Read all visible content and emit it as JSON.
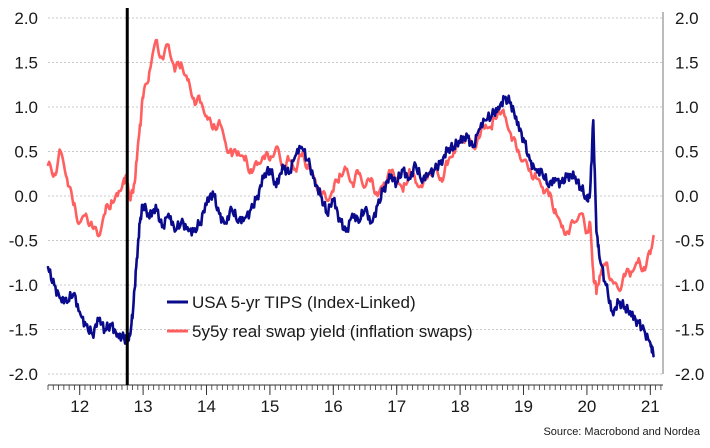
{
  "chart_data": {
    "type": "line",
    "x_tick_labels": [
      "12",
      "13",
      "14",
      "15",
      "16",
      "17",
      "18",
      "19",
      "20",
      "21"
    ],
    "y_tick_labels": [
      "2.0",
      "1.5",
      "1.0",
      "0.5",
      "0.0",
      "-0.5",
      "-1.0",
      "-1.5",
      "-2.0"
    ],
    "ylim": [
      -2.0,
      2.0
    ],
    "xlim": [
      2011.5,
      2021.2
    ],
    "grid": "horizontal",
    "legend_position": "bottom-left",
    "vertical_marker_x": 2012.75,
    "series": [
      {
        "name": "USA 5-yr TIPS (Index-Linked)",
        "color": "#0a0a8c",
        "x": [
          2011.5,
          2011.6,
          2011.7,
          2011.8,
          2011.9,
          2012.0,
          2012.1,
          2012.2,
          2012.3,
          2012.4,
          2012.5,
          2012.6,
          2012.7,
          2012.75,
          2012.8,
          2012.85,
          2012.9,
          2012.95,
          2013.0,
          2013.1,
          2013.2,
          2013.3,
          2013.4,
          2013.5,
          2013.6,
          2013.7,
          2013.8,
          2013.9,
          2014.0,
          2014.1,
          2014.2,
          2014.3,
          2014.4,
          2014.5,
          2014.6,
          2014.7,
          2014.8,
          2014.9,
          2015.0,
          2015.1,
          2015.2,
          2015.3,
          2015.4,
          2015.5,
          2015.6,
          2015.7,
          2015.8,
          2015.9,
          2016.0,
          2016.1,
          2016.2,
          2016.3,
          2016.4,
          2016.5,
          2016.6,
          2016.7,
          2016.8,
          2016.9,
          2017.0,
          2017.1,
          2017.2,
          2017.3,
          2017.4,
          2017.5,
          2017.6,
          2017.7,
          2017.8,
          2017.9,
          2018.0,
          2018.1,
          2018.2,
          2018.3,
          2018.4,
          2018.5,
          2018.6,
          2018.7,
          2018.8,
          2018.9,
          2019.0,
          2019.1,
          2019.2,
          2019.3,
          2019.4,
          2019.5,
          2019.6,
          2019.7,
          2019.8,
          2019.9,
          2020.0,
          2020.05,
          2020.1,
          2020.15,
          2020.2,
          2020.3,
          2020.4,
          2020.5,
          2020.6,
          2020.7,
          2020.8,
          2020.9,
          2021.0,
          2021.05
        ],
        "values": [
          -0.8,
          -1.0,
          -1.15,
          -1.2,
          -1.1,
          -1.3,
          -1.45,
          -1.55,
          -1.4,
          -1.5,
          -1.45,
          -1.55,
          -1.6,
          -1.65,
          -1.55,
          -1.2,
          -0.7,
          -0.3,
          -0.1,
          -0.25,
          -0.1,
          -0.35,
          -0.2,
          -0.4,
          -0.3,
          -0.35,
          -0.4,
          -0.3,
          -0.1,
          0.05,
          -0.2,
          -0.3,
          -0.15,
          -0.3,
          -0.25,
          -0.15,
          0.0,
          0.2,
          0.3,
          0.1,
          0.35,
          0.25,
          0.45,
          0.55,
          0.4,
          0.2,
          0.0,
          -0.2,
          -0.05,
          -0.25,
          -0.4,
          -0.2,
          -0.3,
          -0.15,
          -0.3,
          -0.1,
          0.1,
          0.2,
          0.15,
          0.3,
          0.2,
          0.35,
          0.15,
          0.25,
          0.3,
          0.4,
          0.5,
          0.55,
          0.6,
          0.7,
          0.55,
          0.75,
          0.85,
          0.9,
          1.0,
          1.1,
          1.05,
          0.8,
          0.65,
          0.4,
          0.3,
          0.25,
          0.1,
          0.2,
          0.15,
          0.25,
          0.2,
          0.1,
          -0.05,
          0.05,
          0.85,
          -0.4,
          -0.7,
          -1.0,
          -1.3,
          -1.2,
          -1.25,
          -1.35,
          -1.4,
          -1.5,
          -1.65,
          -1.8
        ]
      },
      {
        "name": "5y5y real swap yield (inflation swaps)",
        "color": "#ff5f5f",
        "x": [
          2011.5,
          2011.6,
          2011.7,
          2011.8,
          2011.9,
          2012.0,
          2012.1,
          2012.2,
          2012.3,
          2012.4,
          2012.5,
          2012.6,
          2012.7,
          2012.75,
          2012.8,
          2012.85,
          2012.9,
          2012.95,
          2013.0,
          2013.1,
          2013.2,
          2013.3,
          2013.4,
          2013.5,
          2013.6,
          2013.7,
          2013.8,
          2013.9,
          2014.0,
          2014.1,
          2014.2,
          2014.3,
          2014.4,
          2014.5,
          2014.6,
          2014.7,
          2014.8,
          2014.9,
          2015.0,
          2015.1,
          2015.2,
          2015.3,
          2015.4,
          2015.5,
          2015.6,
          2015.7,
          2015.8,
          2015.9,
          2016.0,
          2016.1,
          2016.2,
          2016.3,
          2016.4,
          2016.5,
          2016.6,
          2016.7,
          2016.8,
          2016.9,
          2017.0,
          2017.1,
          2017.2,
          2017.3,
          2017.4,
          2017.5,
          2017.6,
          2017.7,
          2017.8,
          2017.9,
          2018.0,
          2018.1,
          2018.2,
          2018.3,
          2018.4,
          2018.5,
          2018.6,
          2018.7,
          2018.8,
          2018.9,
          2019.0,
          2019.1,
          2019.2,
          2019.3,
          2019.4,
          2019.5,
          2019.6,
          2019.7,
          2019.8,
          2019.9,
          2020.0,
          2020.05,
          2020.1,
          2020.15,
          2020.2,
          2020.3,
          2020.4,
          2020.5,
          2020.6,
          2020.7,
          2020.8,
          2020.9,
          2021.0,
          2021.05
        ],
        "values": [
          0.35,
          0.25,
          0.5,
          0.2,
          -0.1,
          -0.3,
          -0.2,
          -0.35,
          -0.45,
          -0.2,
          -0.05,
          0.0,
          0.2,
          0.15,
          -0.05,
          0.1,
          0.4,
          0.8,
          1.1,
          1.4,
          1.75,
          1.55,
          1.7,
          1.4,
          1.5,
          1.3,
          1.1,
          1.05,
          0.9,
          0.75,
          0.85,
          0.6,
          0.45,
          0.5,
          0.4,
          0.3,
          0.35,
          0.45,
          0.4,
          0.55,
          0.35,
          0.4,
          0.3,
          0.45,
          0.35,
          0.2,
          0.05,
          -0.05,
          0.05,
          0.25,
          0.3,
          0.15,
          0.25,
          0.1,
          0.2,
          0.0,
          0.15,
          0.25,
          0.2,
          0.05,
          0.3,
          0.15,
          0.1,
          0.25,
          0.3,
          0.2,
          0.35,
          0.5,
          0.6,
          0.7,
          0.55,
          0.65,
          0.8,
          0.75,
          1.0,
          0.9,
          0.7,
          0.5,
          0.4,
          0.3,
          0.2,
          0.1,
          0.0,
          -0.15,
          -0.35,
          -0.4,
          -0.3,
          -0.2,
          -0.4,
          -0.3,
          -0.85,
          -1.1,
          -0.9,
          -0.75,
          -0.95,
          -1.05,
          -0.9,
          -0.85,
          -0.75,
          -0.8,
          -0.65,
          -0.45
        ]
      }
    ],
    "source": "Source: Macrobond and Nordea"
  }
}
